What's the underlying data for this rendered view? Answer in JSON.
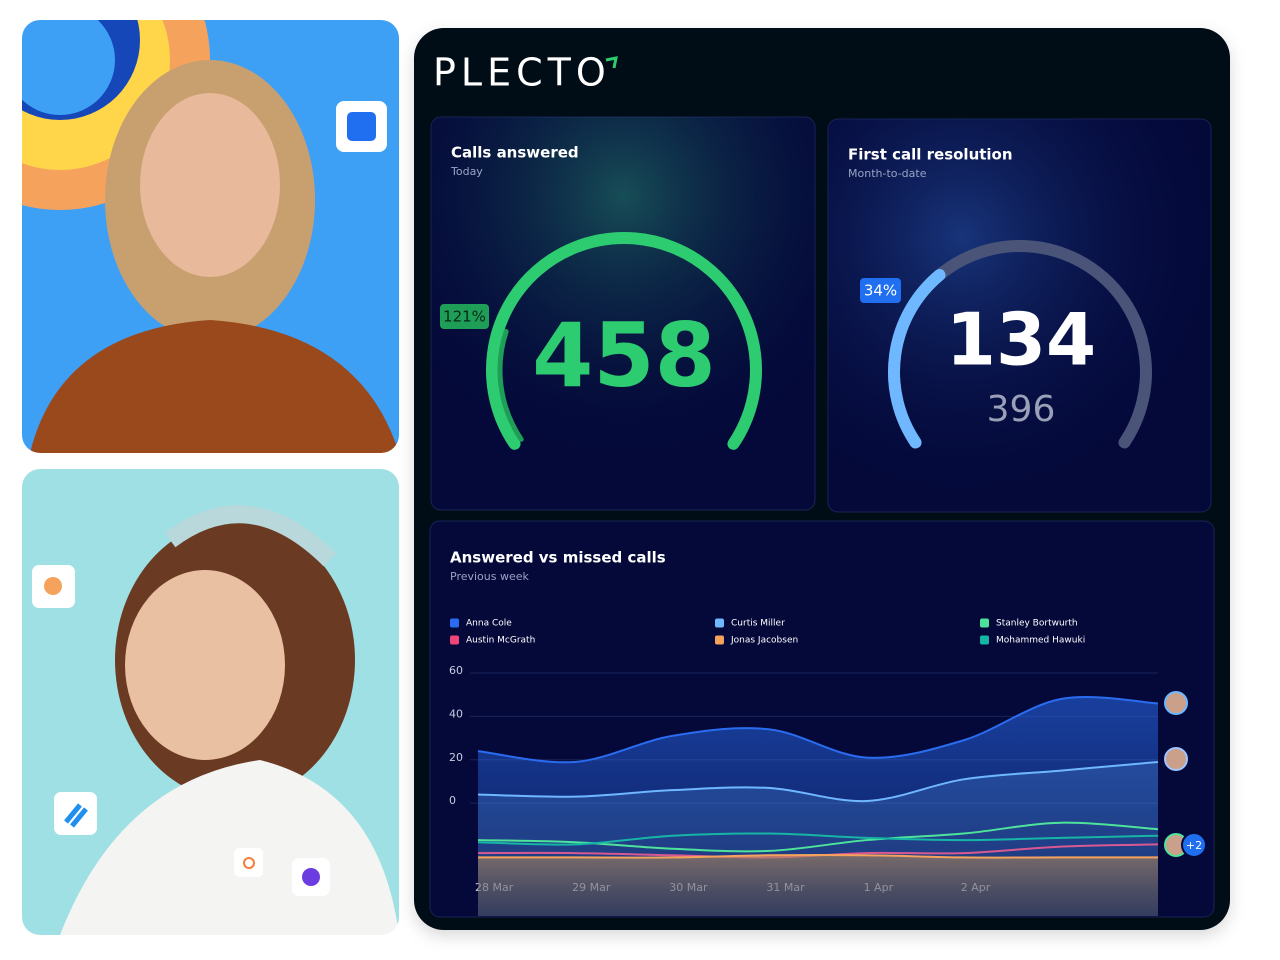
{
  "brand": "PLECTO",
  "widgets": [
    {
      "title": "Calls answered",
      "subtitle": "Today",
      "value": 458,
      "percent": 121,
      "percent_label": "121%"
    },
    {
      "title": "First call resolution",
      "subtitle": "Month-to-date",
      "value": 134,
      "target": 396,
      "percent": 34,
      "percent_label": "34%"
    }
  ],
  "chart_data": {
    "type": "area",
    "title": "Answered vs missed calls",
    "subtitle": "Previous week",
    "categories": [
      "28 Mar",
      "29 Mar",
      "30 Mar",
      "31 Mar",
      "1 Apr",
      "2 Apr",
      null,
      null
    ],
    "ylim": [
      -52,
      60
    ],
    "yticks": [
      0,
      20,
      40,
      60
    ],
    "grid": true,
    "series": [
      {
        "name": "Anna Cole",
        "color": "#2a6cf0",
        "fill": true,
        "values": [
          24,
          19,
          31,
          34,
          21,
          29,
          48,
          46
        ]
      },
      {
        "name": "Austin McGrath",
        "color": "#f0457a",
        "values": [
          -23,
          -23,
          -24,
          -25,
          -23,
          -23,
          -20,
          -19
        ]
      },
      {
        "name": "Curtis Miller",
        "color": "#6fb7ff",
        "fill": true,
        "values": [
          4,
          3,
          6,
          7,
          1,
          11,
          15,
          19
        ]
      },
      {
        "name": "Jonas Jacobsen",
        "color": "#f5a25d",
        "fill": true,
        "values": [
          -25,
          -25,
          -25,
          -24,
          -24,
          -25,
          -25,
          -25
        ]
      },
      {
        "name": "Stanley Bortwurth",
        "color": "#4ee39a",
        "values": [
          -17,
          -18,
          -21,
          -22,
          -17,
          -14,
          -9,
          -12
        ]
      },
      {
        "name": "Mohammed Hawuki",
        "color": "#17b5a6",
        "values": [
          -18,
          -19,
          -15,
          -14,
          -16,
          -17,
          -16,
          -15
        ]
      }
    ]
  },
  "extra_avatars_label": "+2"
}
